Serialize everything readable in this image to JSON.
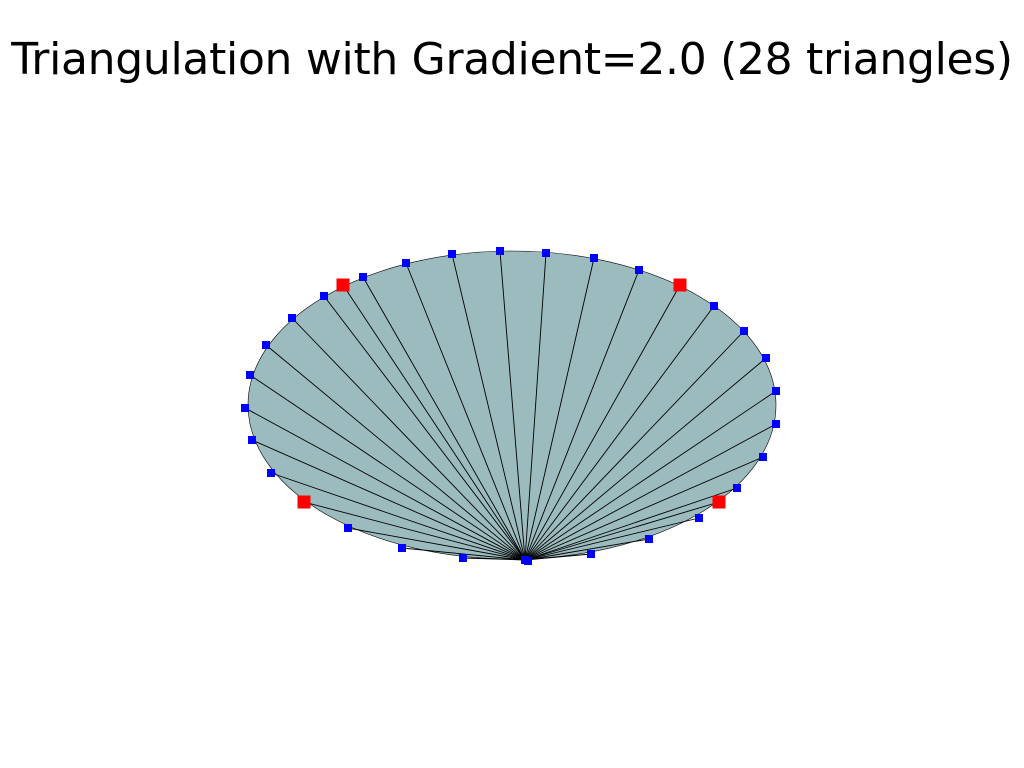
{
  "title": "Triangulation with Gradient=2.0 (28 triangles)",
  "colors": {
    "background": "#ffffff",
    "mesh_fill": "#9cbbbe",
    "edge": "#000000",
    "boundary_point": "#0000ff",
    "highlight_point": "#ff0000"
  },
  "mesh": {
    "triangle_count": 28,
    "boundary_point_count": 32,
    "highlighted_point_count": 4
  }
}
